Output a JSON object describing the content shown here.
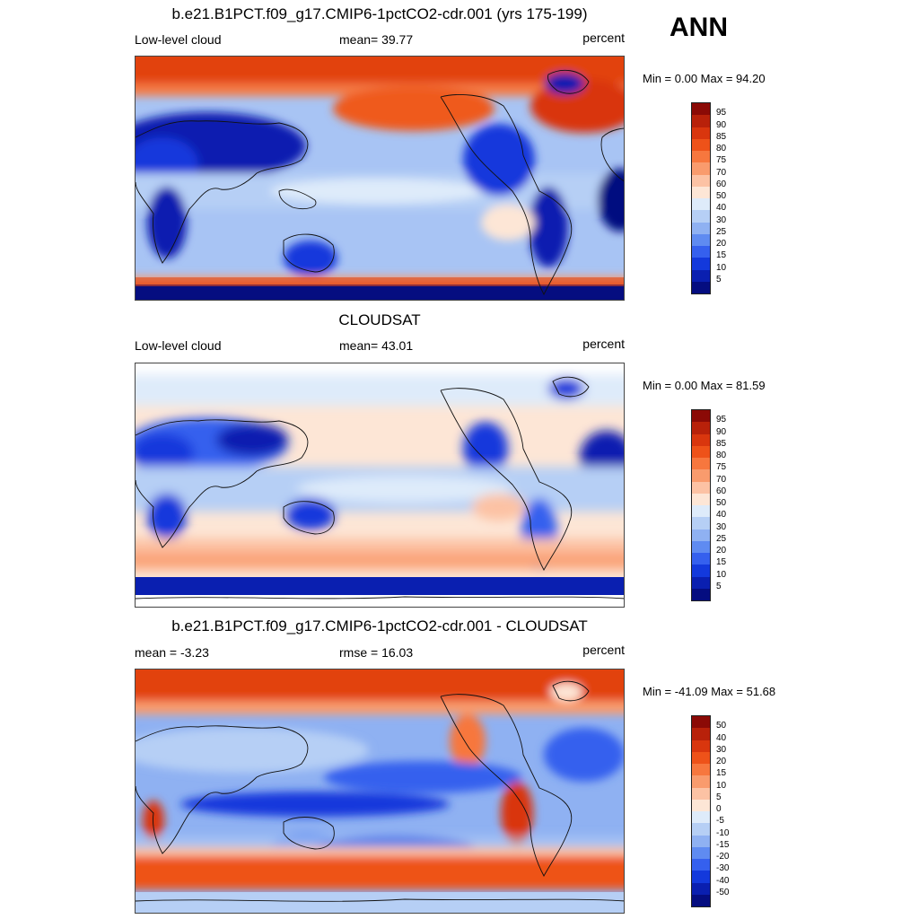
{
  "season": "ANN",
  "panels": [
    {
      "title": "b.e21.B1PCT.f09_g17.CMIP6-1pctCO2-cdr.001 (yrs 175-199)",
      "left_label": "Low-level cloud",
      "center_label": "mean=  39.77",
      "right_label": "percent",
      "minmax": "Min =   0.00 Max =  94.20",
      "legend_labels": [
        "95",
        "90",
        "85",
        "80",
        "75",
        "70",
        "60",
        "50",
        "40",
        "30",
        "25",
        "20",
        "15",
        "10",
        "5"
      ]
    },
    {
      "title": "CLOUDSAT",
      "left_label": "Low-level cloud",
      "center_label": "mean=  43.01",
      "right_label": "percent",
      "minmax": "Min =   0.00 Max =  81.59",
      "legend_labels": [
        "95",
        "90",
        "85",
        "80",
        "75",
        "70",
        "60",
        "50",
        "40",
        "30",
        "25",
        "20",
        "15",
        "10",
        "5"
      ]
    },
    {
      "title": "b.e21.B1PCT.f09_g17.CMIP6-1pctCO2-cdr.001 - CLOUDSAT",
      "left_label": "mean =  -3.23",
      "center_label": "rmse =  16.03",
      "right_label": "percent",
      "minmax": "Min = -41.09 Max =  51.68",
      "legend_labels": [
        "50",
        "40",
        "30",
        "20",
        "15",
        "10",
        "5",
        "0",
        "-5",
        "-10",
        "-15",
        "-20",
        "-30",
        "-40",
        "-50"
      ]
    }
  ],
  "colorbar": {
    "colors": [
      "#8b0a06",
      "#b8210a",
      "#d9360e",
      "#ee5219",
      "#f7773e",
      "#f99b6d",
      "#fcc2a4",
      "#fde6d6",
      "#deebfa",
      "#b6cff5",
      "#8fb1f2",
      "#5f8bf1",
      "#3560ee",
      "#1339dc",
      "#0a1fb0",
      "#050d80"
    ]
  },
  "colors": {
    "frame": "#444444"
  }
}
